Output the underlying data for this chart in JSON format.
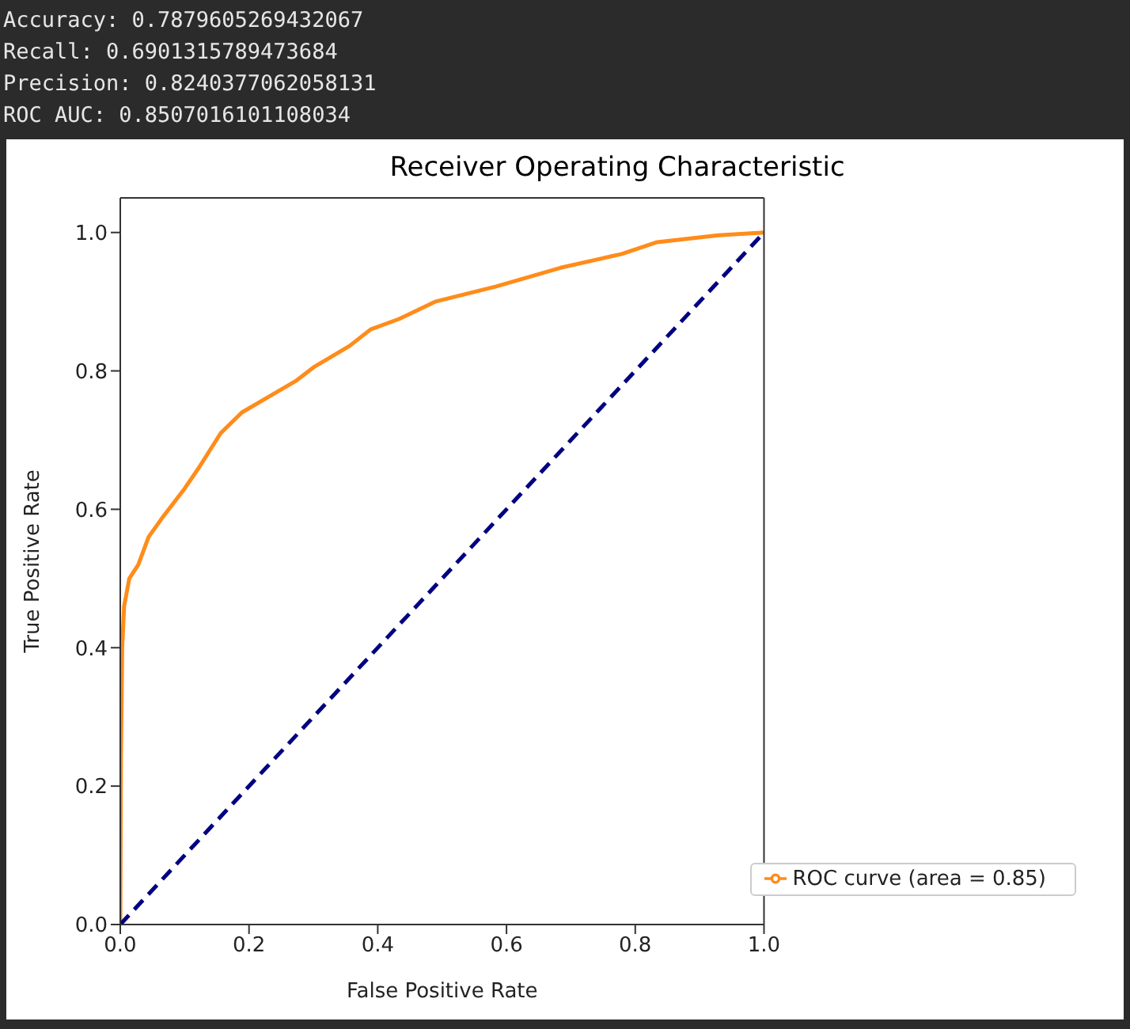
{
  "chart_data": {
    "type": "line",
    "title": "Receiver Operating Characteristic",
    "xlabel": "False Positive Rate",
    "ylabel": "True Positive Rate",
    "annotations": [
      "Accuracy: 0.7879605269432067",
      "Recall: 0.6901315789473684",
      "Precision: 0.8240377062058131",
      "ROC AUC: 0.8507016101108034"
    ],
    "xlim": [
      0,
      1
    ],
    "ylim": [
      0,
      1.05
    ],
    "xticks": [
      {
        "value": 0,
        "label": "0.0"
      },
      0.2,
      0.4,
      0.6,
      0.8,
      {
        "value": 1,
        "label": "1.0"
      }
    ],
    "yticks": [
      {
        "value": 0,
        "label": "0.0"
      },
      0.2,
      0.4,
      0.6,
      0.8,
      {
        "value": 1,
        "label": "1.0"
      }
    ],
    "legend": "bottom right",
    "grid": false,
    "series": [
      {
        "name": "ROC curve (area = 0.85)",
        "color": "#ff8c1a",
        "line_style": "solid",
        "x": [
          0,
          0.001,
          0.003,
          0.006,
          0.014,
          0.028,
          0.044,
          0.067,
          0.1,
          0.122,
          0.156,
          0.189,
          0.244,
          0.272,
          0.3,
          0.356,
          0.389,
          0.433,
          0.489,
          0.584,
          0.684,
          0.779,
          0.834,
          0.929,
          1
        ],
        "values": [
          0,
          0.24,
          0.4,
          0.46,
          0.5,
          0.52,
          0.56,
          0.59,
          0.63,
          0.66,
          0.71,
          0.74,
          0.77,
          0.785,
          0.805,
          0.836,
          0.86,
          0.875,
          0.9,
          0.922,
          0.949,
          0.969,
          0.986,
          0.996,
          1
        ]
      },
      {
        "color": "#000080",
        "line_style": "dashed",
        "x": [
          0,
          1
        ],
        "values": [
          0,
          1
        ]
      }
    ]
  }
}
